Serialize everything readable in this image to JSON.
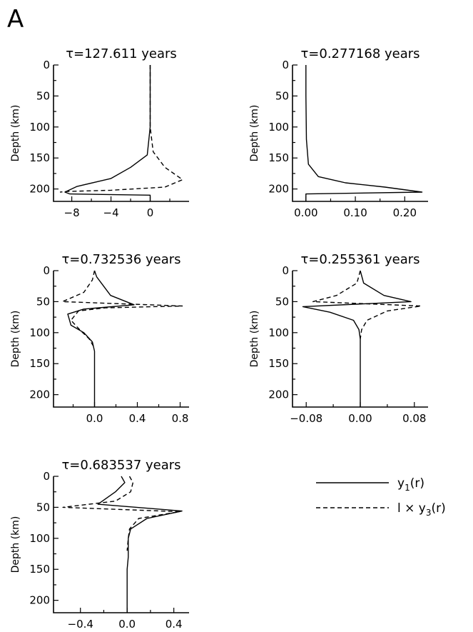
{
  "figure": {
    "label": "A",
    "legend": {
      "solid": {
        "prefix": "y",
        "sub": "1",
        "suffix": "(r)"
      },
      "dashed": {
        "prefix": "l × y",
        "sub": "3",
        "suffix": "(r)"
      }
    }
  },
  "chart_data": [
    {
      "type": "line",
      "title": "τ=127.611  years",
      "ylabel": "Depth (km)",
      "xlim": [
        -9.5,
        3.6
      ],
      "ylim": [
        0,
        220
      ],
      "xticks": [
        -8,
        -4,
        0
      ],
      "xtick_labels": [
        "−8",
        "−4",
        "0"
      ],
      "yticks": [
        0,
        50,
        100,
        150,
        200
      ],
      "series": [
        {
          "style": "solid",
          "x": [
            0,
            0,
            0,
            -0.3,
            -2,
            -4,
            -7.5,
            -8.7,
            -8.2,
            0,
            0
          ],
          "y": [
            0,
            50,
            100,
            145,
            165,
            183,
            196,
            205,
            208,
            210,
            220
          ]
        },
        {
          "style": "dashed",
          "x": [
            0,
            0,
            0.3,
            1.5,
            3.3,
            1.5,
            -4,
            -8.5,
            -9.2
          ],
          "y": [
            0,
            100,
            140,
            165,
            185,
            197,
            202,
            204,
            205
          ]
        }
      ]
    },
    {
      "type": "line",
      "title": "τ=0.277168  years",
      "ylabel": "Depth (km)",
      "xlim": [
        -0.02,
        0.24
      ],
      "ylim": [
        0,
        220
      ],
      "xticks": [
        0.0,
        0.1,
        0.2
      ],
      "xtick_labels": [
        "0.00",
        "0.10",
        "0.20"
      ],
      "yticks": [
        0,
        50,
        100,
        150,
        200
      ],
      "series": [
        {
          "style": "solid",
          "x": [
            0,
            0,
            0.001,
            0.005,
            0.025,
            0.08,
            0.16,
            0.235,
            0,
            0
          ],
          "y": [
            0,
            50,
            120,
            160,
            180,
            190,
            197,
            205,
            208,
            220
          ]
        }
      ]
    },
    {
      "type": "line",
      "title": "τ=0.732536  years",
      "ylabel": "Depth (km)",
      "xlim": [
        -0.35,
        0.85
      ],
      "ylim": [
        0,
        220
      ],
      "xticks": [
        0.0,
        0.4,
        0.8
      ],
      "xtick_labels": [
        "0.0",
        "0.4",
        "0.8"
      ],
      "yticks": [
        0,
        50,
        100,
        150,
        200
      ],
      "series": [
        {
          "style": "solid",
          "x": [
            0,
            0.02,
            0.15,
            0.37,
            -0.1,
            -0.25,
            -0.22,
            -0.1,
            -0.02,
            0,
            0,
            0
          ],
          "y": [
            0,
            10,
            40,
            55,
            62,
            70,
            88,
            100,
            115,
            130,
            150,
            220
          ]
        },
        {
          "style": "dashed",
          "x": [
            0,
            -0.02,
            -0.1,
            -0.3,
            0.82,
            0.1,
            -0.15,
            -0.22,
            -0.14,
            -0.05,
            0
          ],
          "y": [
            0,
            15,
            35,
            50,
            57,
            60,
            65,
            80,
            95,
            110,
            125
          ]
        }
      ]
    },
    {
      "type": "line",
      "title": "τ=0.255361  years",
      "ylabel": "Depth (km)",
      "xlim": [
        -0.095,
        0.095
      ],
      "ylim": [
        0,
        220
      ],
      "xticks": [
        -0.08,
        0.0,
        0.08
      ],
      "xtick_labels": [
        "−0.08",
        "0.00",
        "0.08"
      ],
      "yticks": [
        0,
        50,
        100,
        150,
        200
      ],
      "series": [
        {
          "style": "solid",
          "x": [
            0,
            0.005,
            0.035,
            0.075,
            -0.085,
            -0.045,
            -0.01,
            -0.002,
            0,
            0,
            0
          ],
          "y": [
            0,
            20,
            40,
            50,
            58,
            67,
            80,
            95,
            110,
            150,
            220
          ]
        },
        {
          "style": "dashed",
          "x": [
            0,
            -0.005,
            -0.035,
            -0.07,
            0.09,
            0.04,
            0.01,
            0.002,
            0
          ],
          "y": [
            0,
            20,
            40,
            50,
            57,
            65,
            80,
            95,
            110
          ]
        }
      ]
    },
    {
      "type": "line",
      "title": "τ=0.683537  years",
      "ylabel": "Depth (km)",
      "xlim": [
        -0.6,
        0.5
      ],
      "ylim": [
        0,
        220
      ],
      "xticks": [
        -0.4,
        0.0,
        0.4
      ],
      "xtick_labels": [
        "−0.4",
        "0.0",
        "0.4"
      ],
      "yticks": [
        0,
        50,
        100,
        150,
        200
      ],
      "series": [
        {
          "style": "solid",
          "x": [
            -0.05,
            -0.02,
            -0.1,
            -0.25,
            0.47,
            0.17,
            0.03,
            0.01,
            0.01,
            0,
            0
          ],
          "y": [
            0,
            10,
            25,
            45,
            56,
            68,
            85,
            100,
            130,
            150,
            220
          ]
        },
        {
          "style": "dashed",
          "x": [
            0.02,
            0.05,
            0.03,
            -0.1,
            -0.55,
            0.45,
            0.1,
            0.02,
            0.01,
            0
          ],
          "y": [
            0,
            10,
            25,
            40,
            50,
            57,
            68,
            85,
            100,
            120
          ]
        }
      ]
    }
  ]
}
